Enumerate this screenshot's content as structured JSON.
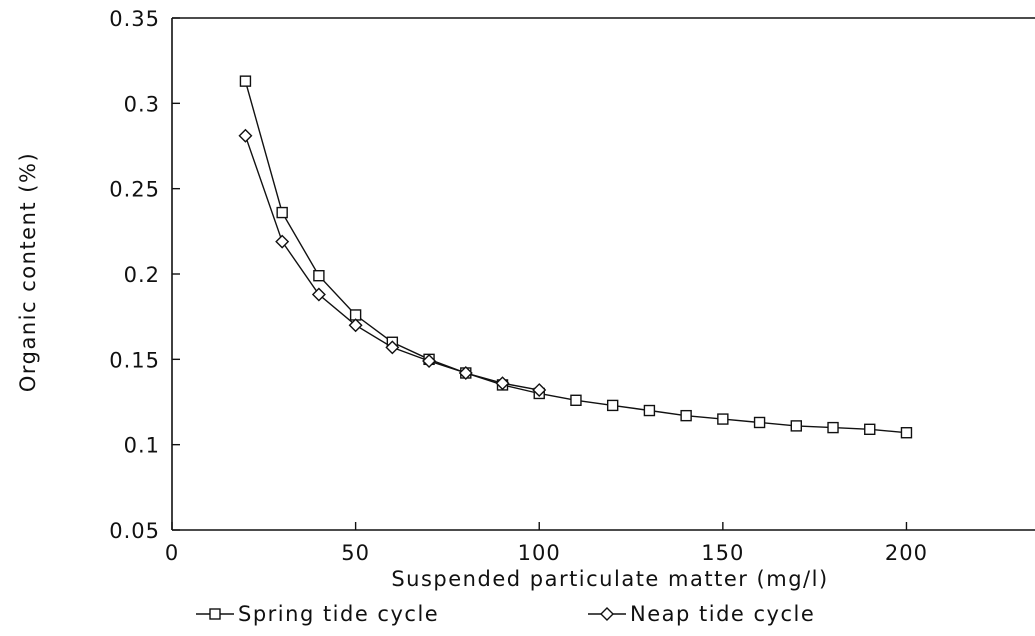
{
  "chart_data": {
    "type": "line",
    "xlabel": "Suspended particulate matter (mg/l)",
    "ylabel": "Organic content (%)",
    "xlim": [
      0,
      235
    ],
    "ylim": [
      0.05,
      0.35
    ],
    "xticks": [
      0,
      50,
      100,
      150,
      200
    ],
    "xtick_labels": [
      "0",
      "50",
      "100",
      "150",
      "200"
    ],
    "yticks": [
      0.05,
      0.1,
      0.15,
      0.2,
      0.25,
      0.3,
      0.35
    ],
    "ytick_labels": [
      "0.05",
      "0.1",
      "0.15",
      "0.2",
      "0.25",
      "0.3",
      "0.35"
    ],
    "grid": false,
    "legend_position": "bottom",
    "line_color": "#111111",
    "series": [
      {
        "name": "Spring tide cycle",
        "marker": "square",
        "x": [
          20,
          30,
          40,
          50,
          60,
          70,
          80,
          90,
          100,
          110,
          120,
          130,
          140,
          150,
          160,
          170,
          180,
          190,
          200
        ],
        "y": [
          0.313,
          0.236,
          0.199,
          0.176,
          0.16,
          0.15,
          0.142,
          0.135,
          0.13,
          0.126,
          0.123,
          0.12,
          0.117,
          0.115,
          0.113,
          0.111,
          0.11,
          0.109,
          0.107
        ]
      },
      {
        "name": "Neap tide cycle",
        "marker": "diamond",
        "x": [
          20,
          30,
          40,
          50,
          60,
          70,
          80,
          90,
          100
        ],
        "y": [
          0.281,
          0.219,
          0.188,
          0.17,
          0.157,
          0.149,
          0.142,
          0.136,
          0.132
        ]
      }
    ]
  }
}
